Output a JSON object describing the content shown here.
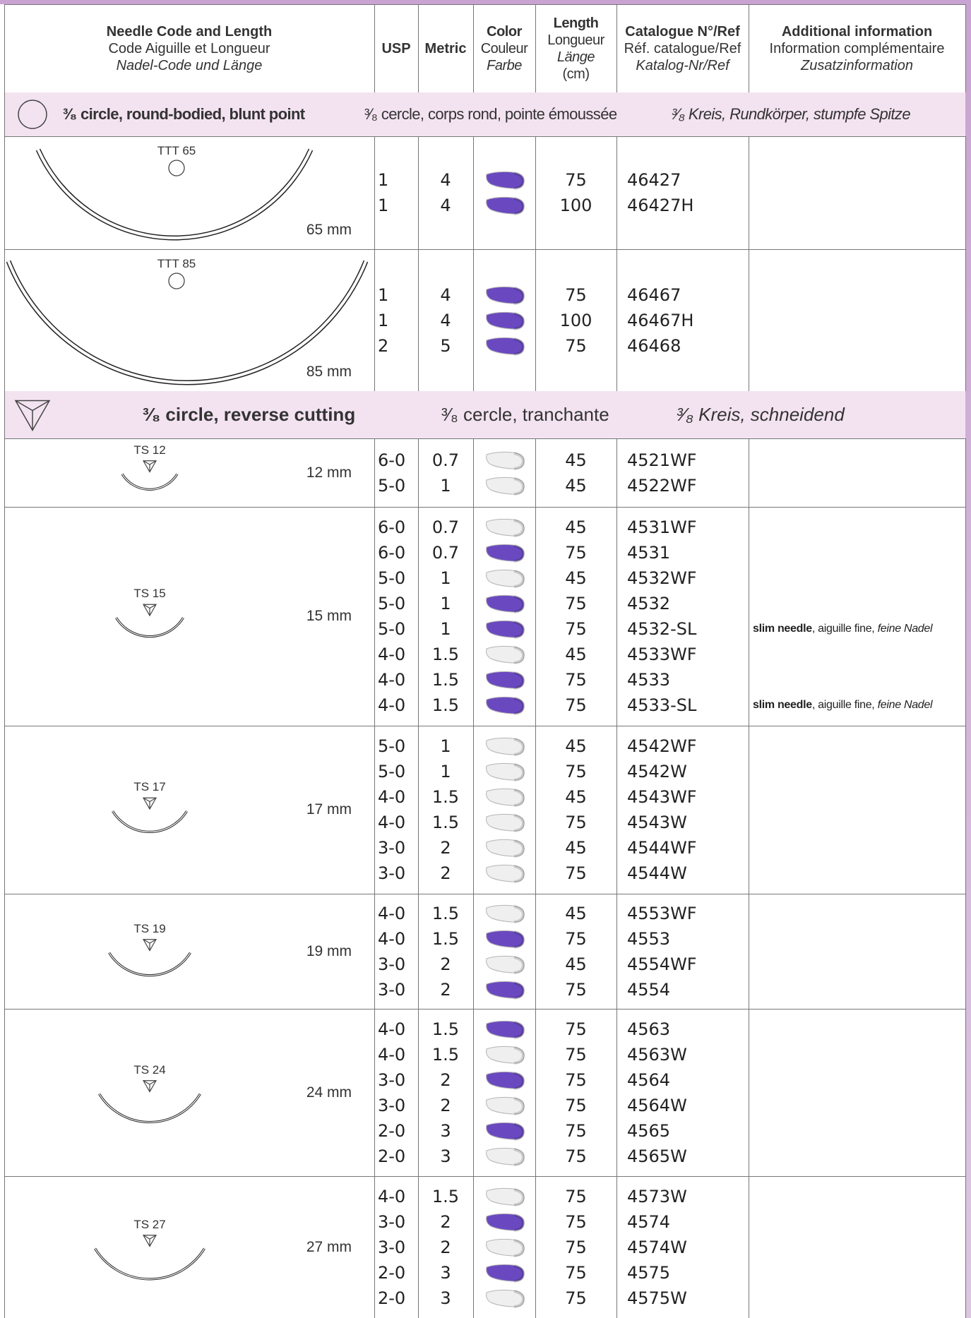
{
  "header": {
    "needle": [
      "Needle Code and Length",
      "Code Aiguille et Longueur",
      "Nadel-Code und Länge"
    ],
    "usp": "USP",
    "metric": "Metric",
    "color": [
      "Color",
      "Couleur",
      "Farbe"
    ],
    "length": [
      "Length",
      "Longueur",
      "Länge",
      "(cm)"
    ],
    "catalogue": [
      "Catalogue N°/Ref",
      "Réf. catalogue/Ref",
      "Katalog-Nr/Ref"
    ],
    "additional": [
      "Additional information",
      "Information complémentaire",
      "Zusatzinformation"
    ]
  },
  "sections": [
    {
      "title": {
        "bold": "³⁄₈ circle, round-bodied, blunt point",
        "normal": "³⁄₈ cercle, corps rond, pointe émoussée",
        "italic": "³⁄₈ Kreis, Rundkörper, stumpfe Spitze"
      },
      "needles": [
        {
          "code": "TTT 65",
          "size": "65 mm",
          "rows": [
            {
              "usp": 1,
              "metric": 4,
              "color": "#6a49c0",
              "length": 75,
              "ref": "46427"
            },
            {
              "usp": 1,
              "metric": 4,
              "color": "#6a49c0",
              "length": 100,
              "ref": "46427H"
            }
          ]
        },
        {
          "code": "TTT 85",
          "size": "85 mm",
          "rows": [
            {
              "usp": 1,
              "metric": 4,
              "color": "#6a49c0",
              "length": 75,
              "ref": "46467"
            },
            {
              "usp": 1,
              "metric": 4,
              "color": "#6a49c0",
              "length": 100,
              "ref": "46467H"
            },
            {
              "usp": 2,
              "metric": 5,
              "color": "#6a49c0",
              "length": 75,
              "ref": "46468"
            }
          ]
        }
      ]
    },
    {
      "title": {
        "bold": "³⁄₈ circle, reverse cutting",
        "normal": "³⁄₈ cercle, tranchante",
        "italic": "³⁄₈ Kreis, schneidend"
      },
      "needles": [
        {
          "code": "TS 12",
          "size": "12 mm",
          "rows": [
            {
              "usp": "6-0",
              "metric": 0.7,
              "color": "#efefef",
              "length": 45,
              "ref": "4521WF"
            },
            {
              "usp": "5-0",
              "metric": 1,
              "color": "#efefef",
              "length": 45,
              "ref": "4522WF"
            }
          ]
        },
        {
          "code": "TS 15",
          "size": "15 mm",
          "rows": [
            {
              "usp": "6-0",
              "metric": 0.7,
              "color": "#efefef",
              "length": 45,
              "ref": "4531WF"
            },
            {
              "usp": "6-0",
              "metric": 0.7,
              "color": "#6a49c0",
              "length": 75,
              "ref": "4531"
            },
            {
              "usp": "5-0",
              "metric": 1,
              "color": "#efefef",
              "length": 45,
              "ref": "4532WF"
            },
            {
              "usp": "5-0",
              "metric": 1,
              "color": "#6a49c0",
              "length": 75,
              "ref": "4532"
            },
            {
              "usp": "5-0",
              "metric": 1,
              "color": "#6a49c0",
              "length": 75,
              "ref": "4532-SL",
              "info": {
                "bold": "slim needle",
                "normal": ", aiguille fine, ",
                "italic": "feine Nadel"
              }
            },
            {
              "usp": "4-0",
              "metric": 1.5,
              "color": "#efefef",
              "length": 45,
              "ref": "4533WF"
            },
            {
              "usp": "4-0",
              "metric": 1.5,
              "color": "#6a49c0",
              "length": 75,
              "ref": "4533"
            },
            {
              "usp": "4-0",
              "metric": 1.5,
              "color": "#6a49c0",
              "length": 75,
              "ref": "4533-SL",
              "info": {
                "bold": "slim needle",
                "normal": ", aiguille fine, ",
                "italic": "feine Nadel"
              }
            }
          ]
        },
        {
          "code": "TS 17",
          "size": "17 mm",
          "rows": [
            {
              "usp": "5-0",
              "metric": 1,
              "color": "#efefef",
              "length": 45,
              "ref": "4542WF"
            },
            {
              "usp": "5-0",
              "metric": 1,
              "color": "#efefef",
              "length": 75,
              "ref": "4542W"
            },
            {
              "usp": "4-0",
              "metric": 1.5,
              "color": "#efefef",
              "length": 45,
              "ref": "4543WF"
            },
            {
              "usp": "4-0",
              "metric": 1.5,
              "color": "#efefef",
              "length": 75,
              "ref": "4543W"
            },
            {
              "usp": "3-0",
              "metric": 2,
              "color": "#efefef",
              "length": 45,
              "ref": "4544WF"
            },
            {
              "usp": "3-0",
              "metric": 2,
              "color": "#efefef",
              "length": 75,
              "ref": "4544W"
            }
          ]
        },
        {
          "code": "TS 19",
          "size": "19 mm",
          "rows": [
            {
              "usp": "4-0",
              "metric": 1.5,
              "color": "#efefef",
              "length": 45,
              "ref": "4553WF"
            },
            {
              "usp": "4-0",
              "metric": 1.5,
              "color": "#6a49c0",
              "length": 75,
              "ref": "4553"
            },
            {
              "usp": "3-0",
              "metric": 2,
              "color": "#efefef",
              "length": 45,
              "ref": "4554WF"
            },
            {
              "usp": "3-0",
              "metric": 2,
              "color": "#6a49c0",
              "length": 75,
              "ref": "4554"
            }
          ]
        },
        {
          "code": "TS 24",
          "size": "24 mm",
          "rows": [
            {
              "usp": "4-0",
              "metric": 1.5,
              "color": "#6a49c0",
              "length": 75,
              "ref": "4563"
            },
            {
              "usp": "4-0",
              "metric": 1.5,
              "color": "#efefef",
              "length": 75,
              "ref": "4563W"
            },
            {
              "usp": "3-0",
              "metric": 2,
              "color": "#6a49c0",
              "length": 75,
              "ref": "4564"
            },
            {
              "usp": "3-0",
              "metric": 2,
              "color": "#efefef",
              "length": 75,
              "ref": "4564W"
            },
            {
              "usp": "2-0",
              "metric": 3,
              "color": "#6a49c0",
              "length": 75,
              "ref": "4565"
            },
            {
              "usp": "2-0",
              "metric": 3,
              "color": "#efefef",
              "length": 75,
              "ref": "4565W"
            }
          ]
        },
        {
          "code": "TS 27",
          "size": "27 mm",
          "rows": [
            {
              "usp": "4-0",
              "metric": 1.5,
              "color": "#efefef",
              "length": 75,
              "ref": "4573W"
            },
            {
              "usp": "3-0",
              "metric": 2,
              "color": "#6a49c0",
              "length": 75,
              "ref": "4574"
            },
            {
              "usp": "3-0",
              "metric": 2,
              "color": "#efefef",
              "length": 75,
              "ref": "4574W"
            },
            {
              "usp": "2-0",
              "metric": 3,
              "color": "#6a49c0",
              "length": 75,
              "ref": "4575"
            },
            {
              "usp": "2-0",
              "metric": 3,
              "color": "#efefef",
              "length": 75,
              "ref": "4575W"
            }
          ]
        }
      ]
    }
  ]
}
